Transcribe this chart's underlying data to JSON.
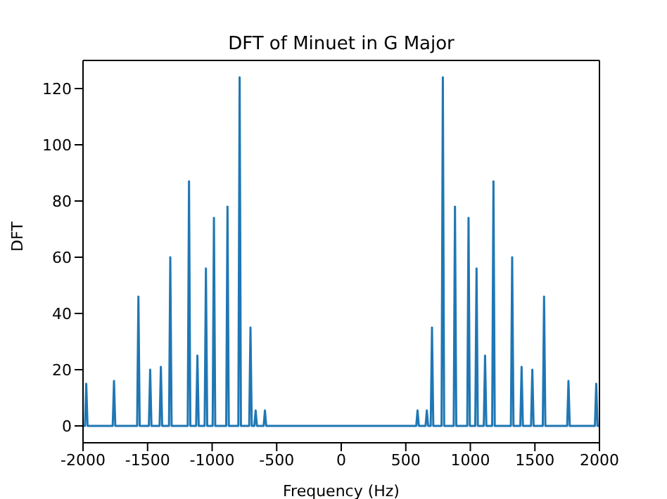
{
  "chart_data": {
    "type": "line",
    "title": "DFT of Minuet in G Major",
    "xlabel": "Frequency (Hz)",
    "ylabel": "DFT",
    "x": [
      -2000,
      -1985,
      -1975,
      -1965,
      -1770,
      -1760,
      -1750,
      -1581,
      -1571,
      -1561,
      -1490,
      -1480,
      -1470,
      -1407,
      -1397,
      -1387,
      -1334,
      -1324,
      -1314,
      -1189,
      -1179,
      -1169,
      -1124,
      -1114,
      -1104,
      -1058,
      -1048,
      -1038,
      -996,
      -986,
      -976,
      -891,
      -881,
      -871,
      -797,
      -787,
      -777,
      -713,
      -703,
      -693,
      -673,
      -663,
      -653,
      -601,
      -591,
      -581,
      -500,
      0,
      500,
      581,
      591,
      601,
      653,
      663,
      673,
      693,
      703,
      713,
      777,
      787,
      797,
      871,
      881,
      891,
      976,
      986,
      996,
      1038,
      1048,
      1058,
      1104,
      1114,
      1124,
      1169,
      1179,
      1189,
      1314,
      1324,
      1334,
      1387,
      1397,
      1407,
      1470,
      1480,
      1490,
      1561,
      1571,
      1581,
      1750,
      1760,
      1770,
      1965,
      1975,
      1985,
      2000
    ],
    "series": [
      {
        "color": "#1f77b4",
        "values": [
          0,
          0,
          15,
          0,
          0,
          16,
          0,
          0,
          46,
          0,
          0,
          20,
          0,
          0,
          21,
          0,
          0,
          60,
          0,
          0,
          87,
          0,
          0,
          25,
          0,
          0,
          56,
          0,
          0,
          74,
          0,
          0,
          78,
          0,
          0,
          124,
          0,
          0,
          35,
          0,
          0,
          5.5,
          0,
          0,
          5.5,
          0,
          0,
          0,
          0,
          0,
          5.5,
          0,
          0,
          5.5,
          0,
          0,
          35,
          0,
          0,
          124,
          0,
          0,
          78,
          0,
          0,
          74,
          0,
          0,
          56,
          0,
          0,
          25,
          0,
          0,
          87,
          0,
          0,
          60,
          0,
          0,
          21,
          0,
          0,
          20,
          0,
          0,
          46,
          0,
          0,
          16,
          0,
          0,
          15,
          0,
          0
        ]
      }
    ],
    "xlim": [
      -2000,
      2000
    ],
    "xticks": [
      -2000,
      -1500,
      -1000,
      -500,
      0,
      500,
      1000,
      1500,
      2000
    ],
    "ylim": [
      -6,
      130
    ],
    "yticks": [
      0,
      20,
      40,
      60,
      80,
      100,
      120
    ],
    "grid": false,
    "marker": "none",
    "line_style": "solid"
  }
}
